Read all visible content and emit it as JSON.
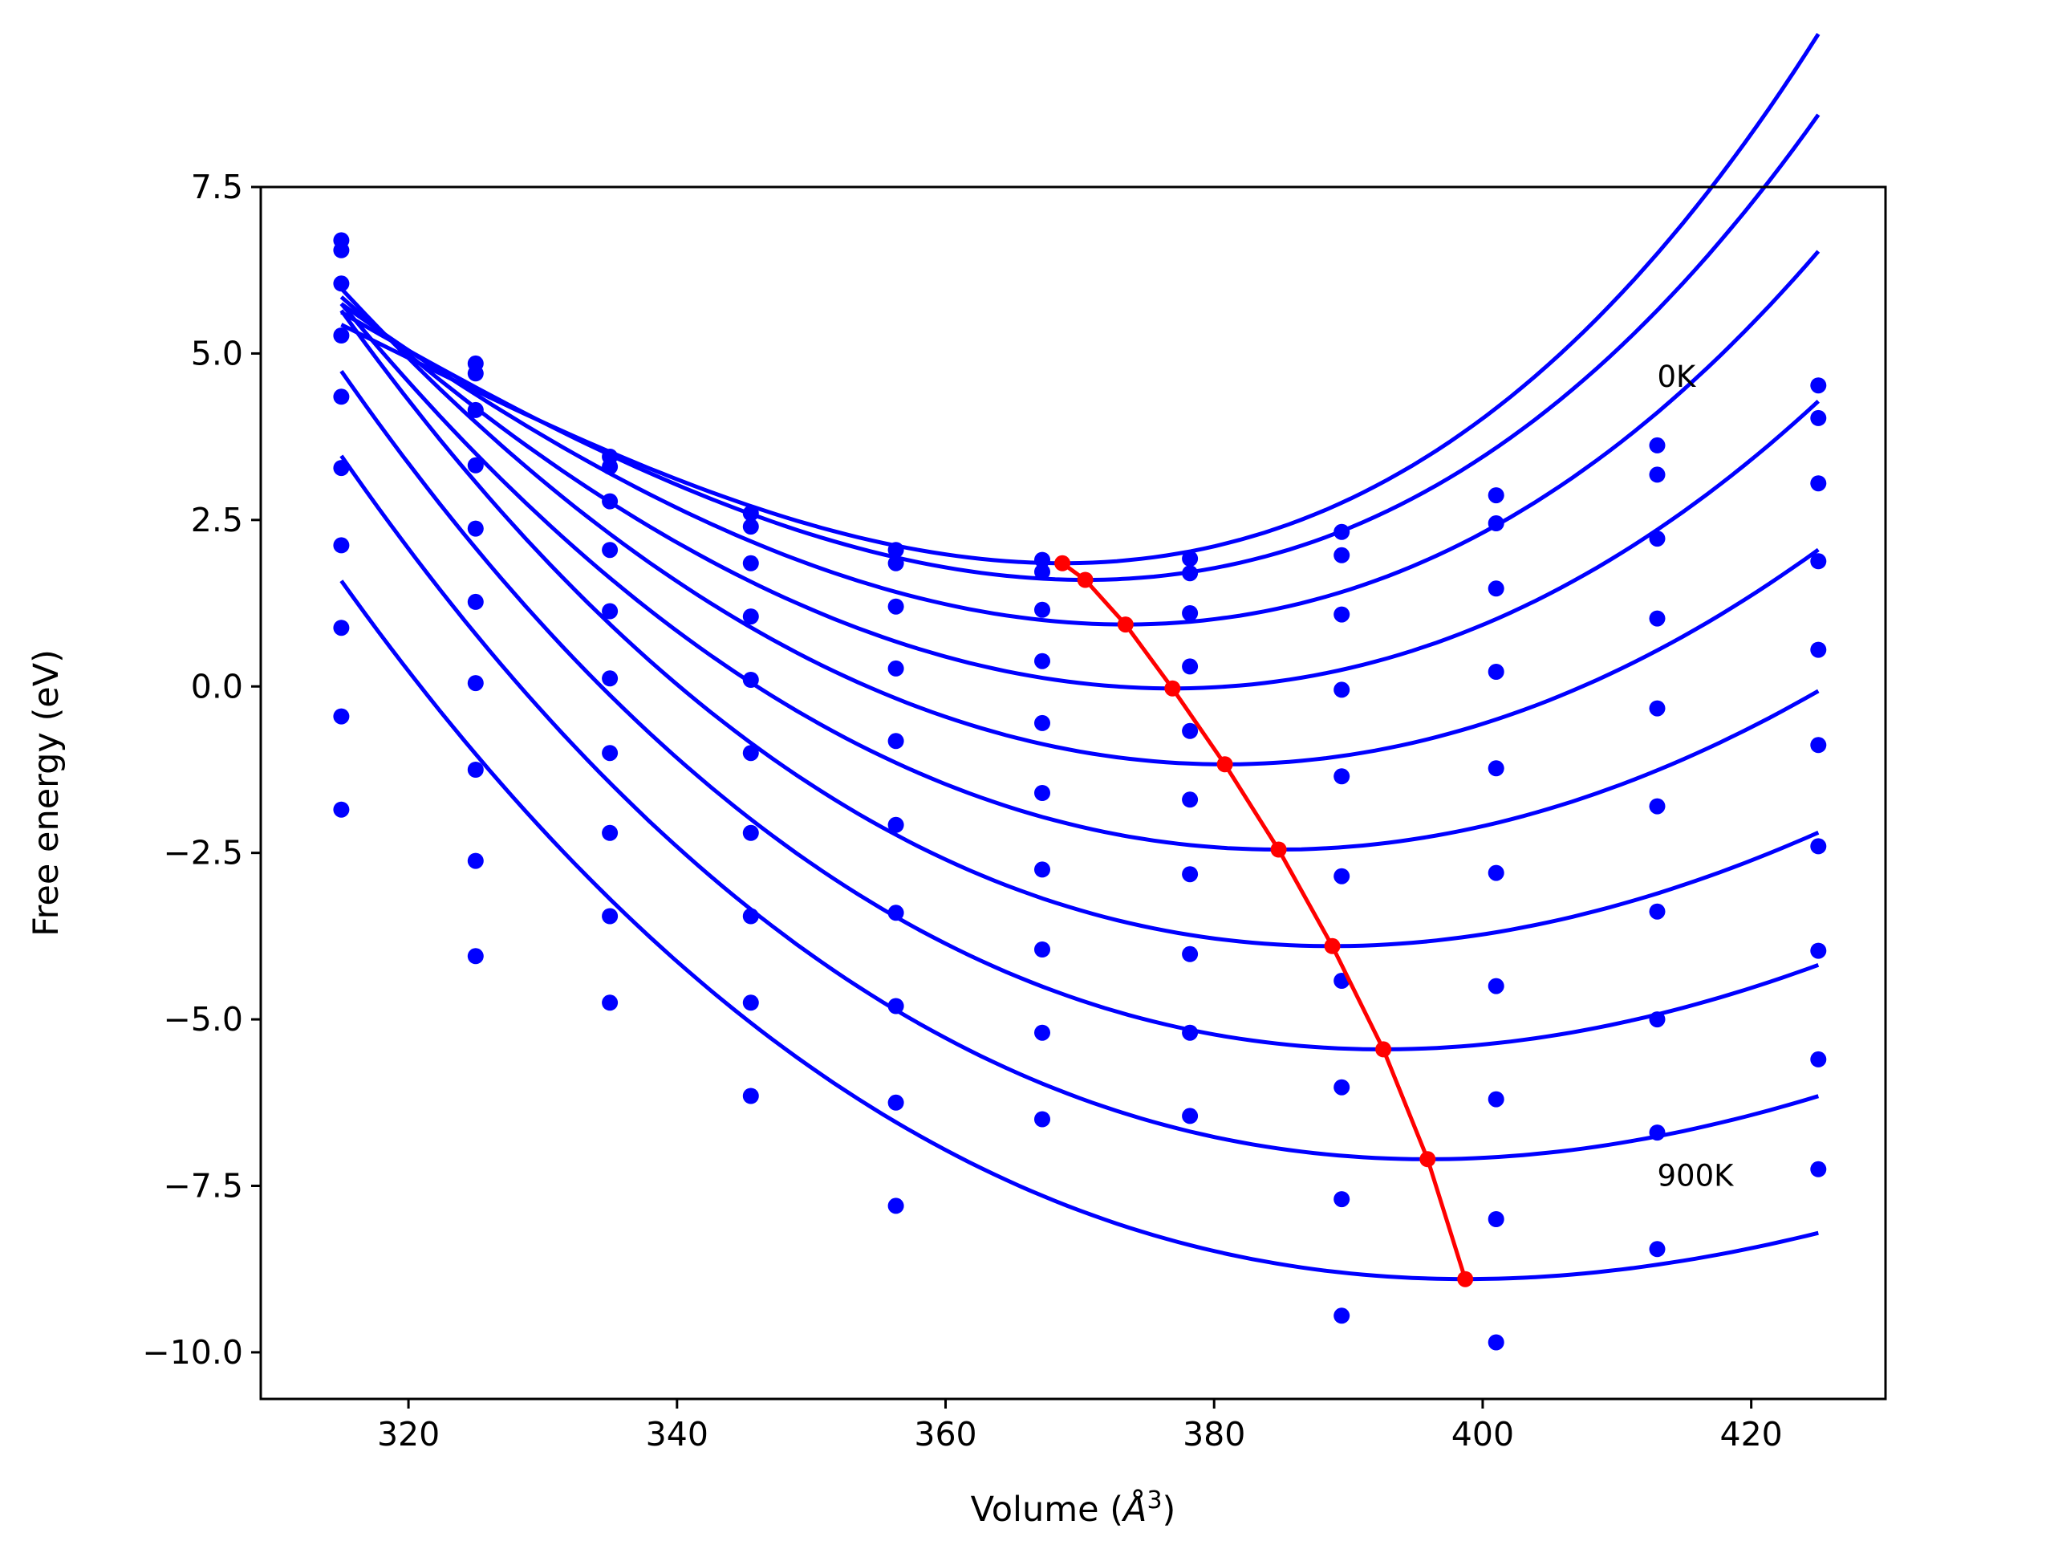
{
  "chart_data": {
    "type": "scatter",
    "xlabel": "Volume (Å³)",
    "xlabel_parts": {
      "pre": "Volume (",
      "symbol": "Å",
      "sup": "3",
      "post": ")"
    },
    "ylabel": "Free energy (eV)",
    "xlim": [
      309,
      430
    ],
    "ylim": [
      -10.7,
      7.5
    ],
    "xticks": [
      320,
      340,
      360,
      380,
      400,
      420
    ],
    "xtick_labels": [
      "320",
      "340",
      "360",
      "380",
      "400",
      "420"
    ],
    "yticks": [
      7.5,
      5.0,
      2.5,
      0.0,
      -2.5,
      -5.0,
      -7.5,
      -10.0
    ],
    "ytick_labels": [
      "7.5",
      "5.0",
      "2.5",
      "0.0",
      "−2.5",
      "−5.0",
      "−7.5",
      "−10.0"
    ],
    "grid": false,
    "annotations": [
      {
        "text": "0K",
        "x": 413,
        "y": 4.5
      },
      {
        "text": "900K",
        "x": 413,
        "y": -7.5
      }
    ],
    "x": [
      315,
      325,
      335,
      345.5,
      356.3,
      367.2,
      378.2,
      389.5,
      401,
      413,
      425
    ],
    "series": [
      {
        "color": "#0000ff",
        "points": [
          6.7,
          4.85,
          3.45,
          2.6,
          2.05,
          1.9,
          1.92,
          2.32,
          2.87,
          3.62,
          4.52
        ],
        "fit": {
          "vmin": 368.7,
          "fmin": 1.85,
          "a": 0.00186,
          "b": 1.15e-05
        }
      },
      {
        "color": "#0000ff",
        "points": [
          6.55,
          4.7,
          3.3,
          2.4,
          1.85,
          1.72,
          1.7,
          1.97,
          2.45,
          3.18,
          4.03
        ],
        "fit": {
          "vmin": 370.4,
          "fmin": 1.6,
          "a": 0.00183,
          "b": 9.4e-06
        }
      },
      {
        "color": "#0000ff",
        "points": [
          6.05,
          4.15,
          2.78,
          1.85,
          1.2,
          1.15,
          1.1,
          1.08,
          1.47,
          2.22,
          3.05
        ],
        "fit": {
          "vmin": 373.4,
          "fmin": 0.93,
          "a": 0.00178,
          "b": 6.3e-06
        }
      },
      {
        "color": "#0000ff",
        "points": [
          5.27,
          3.32,
          2.05,
          1.05,
          0.27,
          0.38,
          0.3,
          -0.05,
          0.22,
          1.02,
          1.88
        ],
        "fit": {
          "vmin": 376.9,
          "fmin": -0.03,
          "a": 0.00172,
          "b": 3e-06
        }
      },
      {
        "color": "#0000ff",
        "points": [
          4.35,
          2.37,
          1.13,
          0.1,
          -0.82,
          -0.55,
          -0.67,
          -1.35,
          -1.23,
          -0.33,
          0.55
        ],
        "fit": {
          "vmin": 380.8,
          "fmin": -1.17,
          "a": 0.00165,
          "b": 0.0
        }
      },
      {
        "color": "#0000ff",
        "points": [
          3.28,
          1.27,
          0.12,
          -1.0,
          -2.08,
          -1.6,
          -1.7,
          -2.85,
          -2.8,
          -1.8,
          -0.88
        ],
        "fit": {
          "vmin": 384.8,
          "fmin": -2.45,
          "a": 0.00155,
          "b": -1.9e-06
        }
      },
      {
        "color": "#0000ff",
        "points": [
          2.12,
          0.05,
          -1.0,
          -2.2,
          -3.4,
          -2.75,
          -2.82,
          -4.42,
          -4.5,
          -3.38,
          -2.4
        ],
        "fit": {
          "vmin": 388.8,
          "fmin": -3.9,
          "a": 0.00145,
          "b": -4.1e-06
        }
      },
      {
        "color": "#0000ff",
        "points": [
          0.88,
          -1.25,
          -2.2,
          -3.45,
          -4.8,
          -3.95,
          -4.02,
          -6.02,
          -6.2,
          -5.0,
          -3.97
        ],
        "fit": {
          "vmin": 392.6,
          "fmin": -5.45,
          "a": 0.00135,
          "b": -4.4e-06
        }
      },
      {
        "color": "#0000ff",
        "points": [
          -0.45,
          -2.62,
          -3.45,
          -4.75,
          -6.25,
          -5.2,
          -5.2,
          -7.7,
          -8.0,
          -6.7,
          -5.6
        ],
        "fit": {
          "vmin": 395.9,
          "fmin": -7.1,
          "a": 0.00125,
          "b": -4.5e-06
        }
      },
      {
        "color": "#0000ff",
        "points": [
          -1.85,
          -4.05,
          -4.75,
          -6.15,
          -7.8,
          -6.5,
          -6.45,
          -9.45,
          -9.85,
          -8.45,
          -7.25
        ],
        "fit": {
          "vmin": 398.7,
          "fmin": -8.9,
          "a": 0.00112,
          "b": -4.5e-06
        }
      }
    ],
    "minima": {
      "color": "#ff0000",
      "x": [
        368.7,
        370.4,
        373.4,
        376.9,
        380.8,
        384.8,
        388.8,
        392.6,
        395.9,
        398.7
      ],
      "y": [
        1.85,
        1.6,
        0.93,
        -0.03,
        -1.17,
        -2.45,
        -3.9,
        -5.45,
        -7.1,
        -8.9
      ]
    }
  }
}
